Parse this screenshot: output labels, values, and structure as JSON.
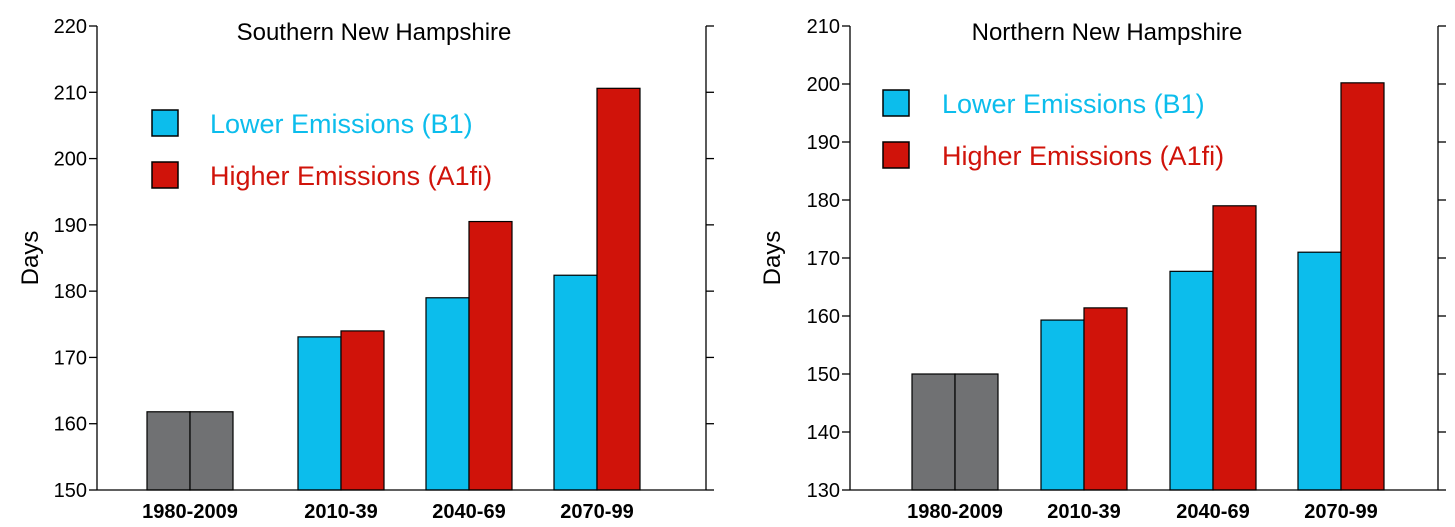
{
  "colors": {
    "baseline": "#707173",
    "lower": "#0cbdec",
    "higher": "#d0130a",
    "axis": "#000000"
  },
  "chart_data": [
    {
      "type": "bar",
      "title": "Southern New Hampshire",
      "ylabel": "Days",
      "xlabel": "",
      "ylim": [
        150,
        220
      ],
      "yticks": [
        150,
        160,
        170,
        180,
        190,
        200,
        210,
        220
      ],
      "categories": [
        "1980-2009",
        "2010-39",
        "2040-69",
        "2070-99"
      ],
      "series": [
        {
          "name": "Lower Emissions (B1)",
          "values": [
            161.8,
            173.1,
            179.0,
            182.4
          ]
        },
        {
          "name": "Higher Emissions (A1fi)",
          "values": [
            161.8,
            174.0,
            190.5,
            210.6
          ]
        }
      ],
      "legend": "top-left"
    },
    {
      "type": "bar",
      "title": "Northern New Hampshire",
      "ylabel": "Days",
      "xlabel": "",
      "ylim": [
        130,
        210
      ],
      "yticks": [
        130,
        140,
        150,
        160,
        170,
        180,
        190,
        200,
        210
      ],
      "categories": [
        "1980-2009",
        "2010-39",
        "2040-69",
        "2070-99"
      ],
      "series": [
        {
          "name": "Lower Emissions (B1)",
          "values": [
            150.0,
            159.3,
            167.7,
            171.0
          ]
        },
        {
          "name": "Higher Emissions (A1fi)",
          "values": [
            150.0,
            161.4,
            179.0,
            200.2
          ]
        }
      ],
      "legend": "top-left"
    }
  ]
}
